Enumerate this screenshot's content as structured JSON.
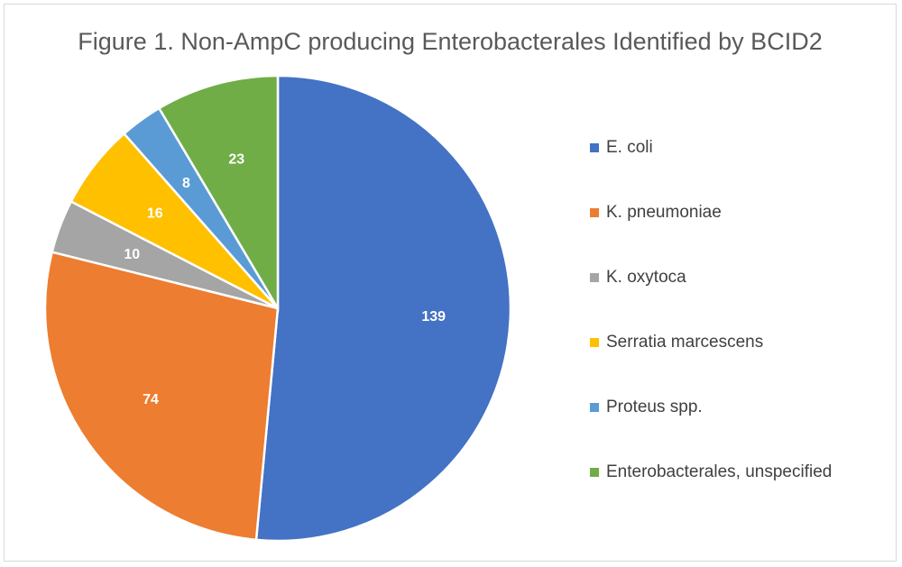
{
  "chart_data": {
    "type": "pie",
    "title": "Figure 1. Non-AmpC producing Enterobacterales Identified by BCID2",
    "legend_position": "right",
    "categories": [
      "E. coli",
      "K. pneumoniae",
      "K. oxytoca",
      "Serratia marcescens",
      "Proteus spp.",
      "Enterobacterales, unspecified"
    ],
    "values": [
      139,
      74,
      10,
      16,
      8,
      23
    ],
    "colors": [
      "#4472C4",
      "#ED7D31",
      "#A5A5A5",
      "#FFC000",
      "#5B9BD5",
      "#70AD47"
    ],
    "data_labels": [
      "139",
      "74",
      "10",
      "16",
      "8",
      "23"
    ]
  }
}
